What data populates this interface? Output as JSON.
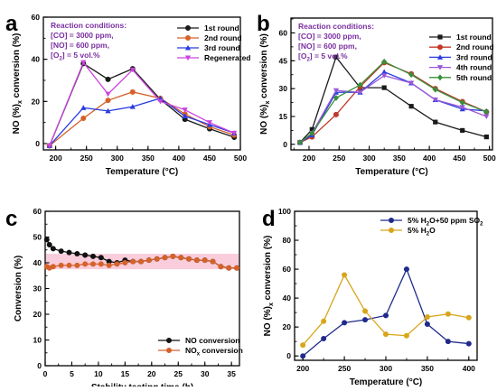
{
  "chart_data": [
    {
      "panel": "a",
      "type": "line",
      "xlabel": "Temperature (°C)",
      "ylabel": "NOx conversion (%)",
      "ylabel_sub": "x",
      "xlim": [
        180,
        500
      ],
      "ylim": [
        -3,
        60
      ],
      "xticks": [
        200,
        250,
        300,
        350,
        400,
        450,
        500
      ],
      "yticks": [
        0,
        20,
        40,
        60
      ],
      "x_minor": 25,
      "y_minor": 10,
      "conditions_title": "Reaction conditions:",
      "conditions_lines": [
        {
          "t": "[CO] = 3000 ppm,",
          "sub": "",
          "rest": ""
        },
        {
          "t": "[NO] = 600 ppm,",
          "sub": "",
          "rest": ""
        },
        {
          "t": "[O",
          "sub": "2",
          "rest": "] = 5 vol.%"
        }
      ],
      "legend": "top-right",
      "series": [
        {
          "name": "1st round",
          "color": "#1a1a1a",
          "marker": "circle",
          "x": [
            190,
            245,
            285,
            325,
            370,
            410,
            450,
            490
          ],
          "y": [
            -1,
            38,
            30.5,
            35.5,
            21,
            11.5,
            7,
            3
          ]
        },
        {
          "name": "2nd round",
          "color": "#d4622a",
          "marker": "circle",
          "x": [
            190,
            245,
            285,
            325,
            370,
            410,
            450,
            490
          ],
          "y": [
            -1,
            12,
            20.5,
            24.5,
            21.5,
            14,
            8,
            4
          ]
        },
        {
          "name": "3rd round",
          "color": "#2a3ce0",
          "marker": "triangle",
          "x": [
            190,
            245,
            285,
            325,
            370,
            410,
            450,
            490
          ],
          "y": [
            -1,
            17,
            15.5,
            17.5,
            21.5,
            13,
            9,
            5
          ]
        },
        {
          "name": "Regenerated",
          "color": "#cc44dd",
          "marker": "triangle-down",
          "x": [
            190,
            245,
            285,
            325,
            370,
            410,
            450,
            490
          ],
          "y": [
            -1,
            38.5,
            23.5,
            35,
            20,
            16,
            10,
            5
          ]
        }
      ]
    },
    {
      "panel": "b",
      "type": "line",
      "xlabel": "Temperature (°C)",
      "ylabel": "NOx conversion (%)",
      "ylabel_sub": "x",
      "xlim": [
        170,
        505
      ],
      "ylim": [
        -3,
        68
      ],
      "xticks": [
        200,
        250,
        300,
        350,
        400,
        450,
        500
      ],
      "yticks": [
        0,
        15,
        30,
        45,
        60
      ],
      "x_minor": 25,
      "y_minor": 7.5,
      "conditions_title": "Reaction conditions:",
      "conditions_lines": [
        {
          "t": "[CO] = 3000 ppm,",
          "sub": "",
          "rest": ""
        },
        {
          "t": "[NO] = 600 ppm,",
          "sub": "",
          "rest": ""
        },
        {
          "t": "[O",
          "sub": "2",
          "rest": "] = 5 vol.%"
        }
      ],
      "legend": "top-right",
      "series": [
        {
          "name": "1st round",
          "color": "#1a1a1a",
          "marker": "square",
          "x": [
            185,
            205,
            245,
            285,
            325,
            370,
            410,
            455,
            495
          ],
          "y": [
            1,
            8,
            47,
            30.5,
            30.5,
            20.5,
            12,
            7.5,
            4
          ]
        },
        {
          "name": "2nd round",
          "color": "#c0392b",
          "marker": "circle",
          "x": [
            185,
            205,
            245,
            285,
            325,
            370,
            410,
            455,
            495
          ],
          "y": [
            1,
            4,
            16,
            31,
            44,
            38,
            30,
            23,
            17.5
          ]
        },
        {
          "name": "3rd round",
          "color": "#2a3ce0",
          "marker": "triangle",
          "x": [
            185,
            205,
            245,
            285,
            325,
            370,
            410,
            455,
            495
          ],
          "y": [
            1,
            5,
            28,
            28,
            39,
            33,
            24,
            19,
            18
          ]
        },
        {
          "name": "4th round",
          "color": "#9b59d6",
          "marker": "triangle-down",
          "x": [
            185,
            205,
            245,
            285,
            325,
            370,
            410,
            455,
            495
          ],
          "y": [
            1,
            6,
            29,
            28,
            37,
            33,
            24,
            20,
            15
          ]
        },
        {
          "name": "5th round",
          "color": "#3a8f3a",
          "marker": "diamond",
          "x": [
            185,
            205,
            245,
            285,
            325,
            370,
            410,
            455,
            495
          ],
          "y": [
            1,
            6,
            25,
            32,
            44.5,
            37.5,
            29.5,
            22.5,
            17.5
          ]
        }
      ]
    },
    {
      "panel": "c",
      "type": "line",
      "xlabel": "Stability testing time (h)",
      "ylabel": "Conversion (%)",
      "xlim": [
        0,
        36.5
      ],
      "ylim": [
        0,
        60
      ],
      "xticks": [
        0,
        5,
        10,
        15,
        20,
        25,
        30,
        35
      ],
      "yticks": [
        0,
        10,
        20,
        30,
        40,
        50,
        60
      ],
      "x_minor": 2.5,
      "y_minor": 5,
      "band": {
        "color": "#f6b8cc",
        "ymin": 37.5,
        "ymax": 43.5
      },
      "legend": "bottom-right",
      "series": [
        {
          "name": "NO conversion",
          "name_sub": "",
          "color": "#111111",
          "marker": "circle",
          "x": [
            0.3,
            0.8,
            1.5,
            3,
            4.5,
            6,
            7.5,
            9,
            10.5,
            12,
            13.5,
            15,
            16.5,
            18,
            19.5,
            21,
            22.5,
            24,
            25.5,
            27,
            28.5,
            30,
            31.5,
            33,
            34.5,
            36
          ],
          "y": [
            49,
            47,
            45.5,
            44.5,
            44,
            43.5,
            43,
            42.5,
            42,
            40.5,
            40,
            41,
            40.5,
            40.5,
            41,
            41.5,
            42,
            42.5,
            42,
            41.5,
            41,
            41,
            40.5,
            38.5,
            38,
            38
          ]
        },
        {
          "name": "NO",
          "name_sub": "x",
          "name_rest": " conversion",
          "color": "#d4622a",
          "marker": "circle",
          "x": [
            0.3,
            0.8,
            1.5,
            3,
            4.5,
            6,
            7.5,
            9,
            10.5,
            12,
            13.5,
            15,
            16.5,
            18,
            19.5,
            21,
            22.5,
            24,
            25.5,
            27,
            28.5,
            30,
            31.5,
            33,
            34.5,
            36
          ],
          "y": [
            38.5,
            38,
            38.5,
            39,
            39,
            39,
            39.5,
            39.5,
            39.5,
            39,
            39.5,
            40,
            40.5,
            40.5,
            41,
            41.5,
            42,
            42.5,
            42,
            41.5,
            41,
            41,
            40.5,
            38.5,
            38,
            38
          ]
        }
      ]
    },
    {
      "panel": "d",
      "type": "line",
      "xlabel": "Temperature (°C)",
      "ylabel": "NOx conversion (%)",
      "ylabel_sub": "x",
      "xlim": [
        190,
        410
      ],
      "ylim": [
        -3,
        100
      ],
      "xticks": [
        200,
        250,
        300,
        350,
        400
      ],
      "yticks": [
        0,
        20,
        40,
        60,
        80,
        100
      ],
      "x_minor": 25,
      "y_minor": 10,
      "legend": "top-right",
      "series": [
        {
          "name": "5% H",
          "name_sub": "2",
          "name_rest": "O+50 ppm SO",
          "name_sub2": "2",
          "color": "#1f2a8c",
          "marker": "circle",
          "x": [
            200,
            225,
            250,
            275,
            300,
            325,
            350,
            375,
            400
          ],
          "y": [
            0,
            12,
            23,
            25,
            28,
            60,
            22,
            10,
            8.5
          ]
        },
        {
          "name": "5% H",
          "name_sub": "2",
          "name_rest": "O",
          "name_sub2": "",
          "color": "#d8a51a",
          "marker": "circle",
          "x": [
            200,
            225,
            250,
            275,
            300,
            325,
            350,
            375,
            400
          ],
          "y": [
            7.5,
            24,
            56,
            31,
            15,
            14,
            27,
            29,
            26.5
          ]
        }
      ]
    }
  ],
  "panel_labels": [
    "a",
    "b",
    "c",
    "d"
  ]
}
